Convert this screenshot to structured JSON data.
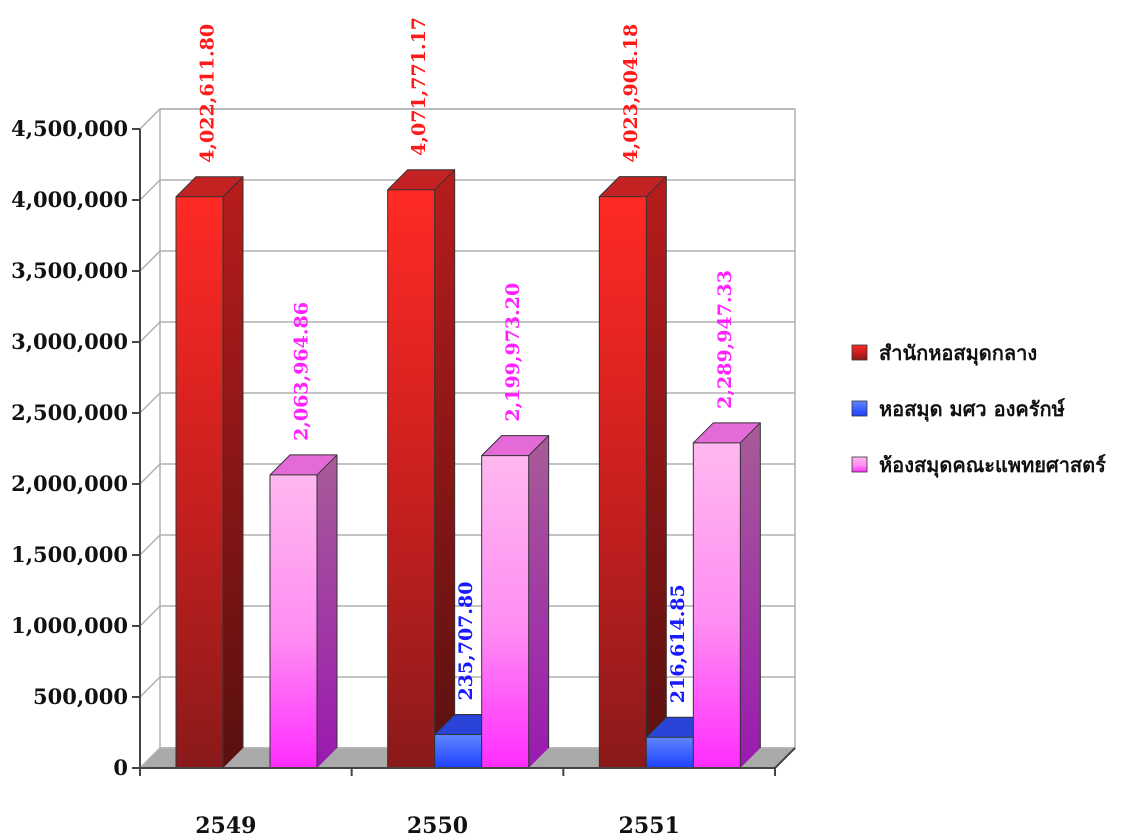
{
  "chart_data": {
    "type": "bar",
    "categories": [
      "2549",
      "2550",
      "2551"
    ],
    "series": [
      {
        "name": "สำนักหอสมุดกลาง",
        "values": [
          4022611.8,
          4071771.17,
          4023904.18
        ],
        "labels": [
          "4,022,611.80",
          "4,071,771.17",
          "4,023,904.18"
        ],
        "color": "#e8201c",
        "label_color": "#ff1a1a"
      },
      {
        "name": "หอสมุด มศว องครักษ์",
        "values": [
          null,
          235707.8,
          216614.85
        ],
        "labels": [
          null,
          "235,707.80",
          "216,614.85"
        ],
        "color": "#2f5bff",
        "label_color": "#1a1aff"
      },
      {
        "name": "ห้องสมุดคณะแพทยศาสตร์",
        "values": [
          2063964.86,
          2199973.2,
          2289947.33
        ],
        "labels": [
          "2,063,964.86",
          "2,199,973.20",
          "2,289,947.33"
        ],
        "color": "#ff66e6",
        "label_color": "#ff22ff"
      }
    ],
    "yticks": [
      "0",
      "500,000",
      "1,000,000",
      "1,500,000",
      "2,000,000",
      "2,500,000",
      "3,000,000",
      "3,500,000",
      "4,000,000",
      "4,500,000"
    ],
    "ylim": [
      0,
      4500000
    ],
    "grid": true,
    "legend": "right",
    "style": "3d"
  }
}
